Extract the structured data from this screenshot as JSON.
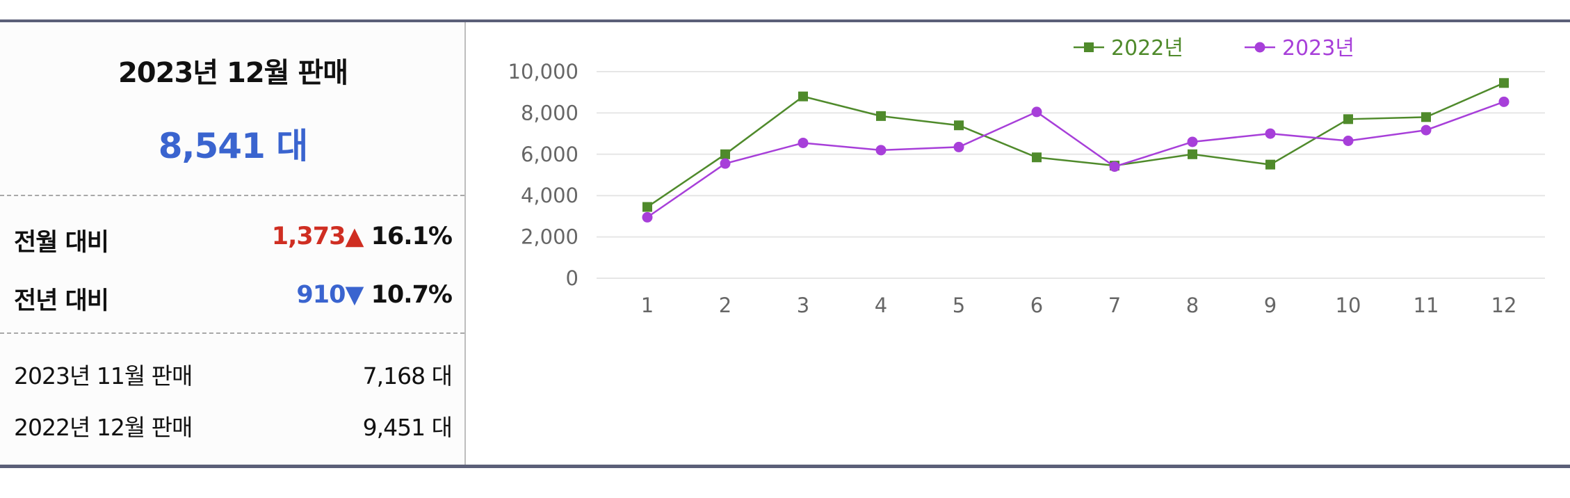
{
  "summary": {
    "title": "2023년 12월 판매",
    "value": "8,541 대",
    "mom": {
      "label": "전월 대비",
      "diff": "1,373",
      "arrow": "▲",
      "pct": "16.1%"
    },
    "yoy": {
      "label": "전년 대비",
      "diff": "910",
      "arrow": "▼",
      "pct": "10.7%"
    },
    "prev_month": {
      "label": "2023년 11월 판매",
      "value": "7,168 대"
    },
    "prev_year": {
      "label": "2022년 12월 판매",
      "value": "9,451 대"
    }
  },
  "chart_data": {
    "type": "line",
    "x": [
      "1",
      "2",
      "3",
      "4",
      "5",
      "6",
      "7",
      "8",
      "9",
      "10",
      "11",
      "12"
    ],
    "ylim": [
      0,
      10000
    ],
    "yticks": [
      "0",
      "2,000",
      "4,000",
      "6,000",
      "8,000",
      "10,000"
    ],
    "grid": true,
    "legend": "top-right",
    "series": [
      {
        "name": "2022년",
        "color": "#4f8a2b",
        "marker": "square",
        "values": [
          3450,
          6000,
          8800,
          7850,
          7400,
          5850,
          5450,
          6000,
          5500,
          7700,
          7800,
          9451
        ]
      },
      {
        "name": "2023년",
        "color": "#a73fd9",
        "marker": "circle",
        "values": [
          2950,
          5550,
          6550,
          6200,
          6350,
          8050,
          5400,
          6600,
          7000,
          6650,
          7168,
          8541
        ]
      }
    ]
  }
}
